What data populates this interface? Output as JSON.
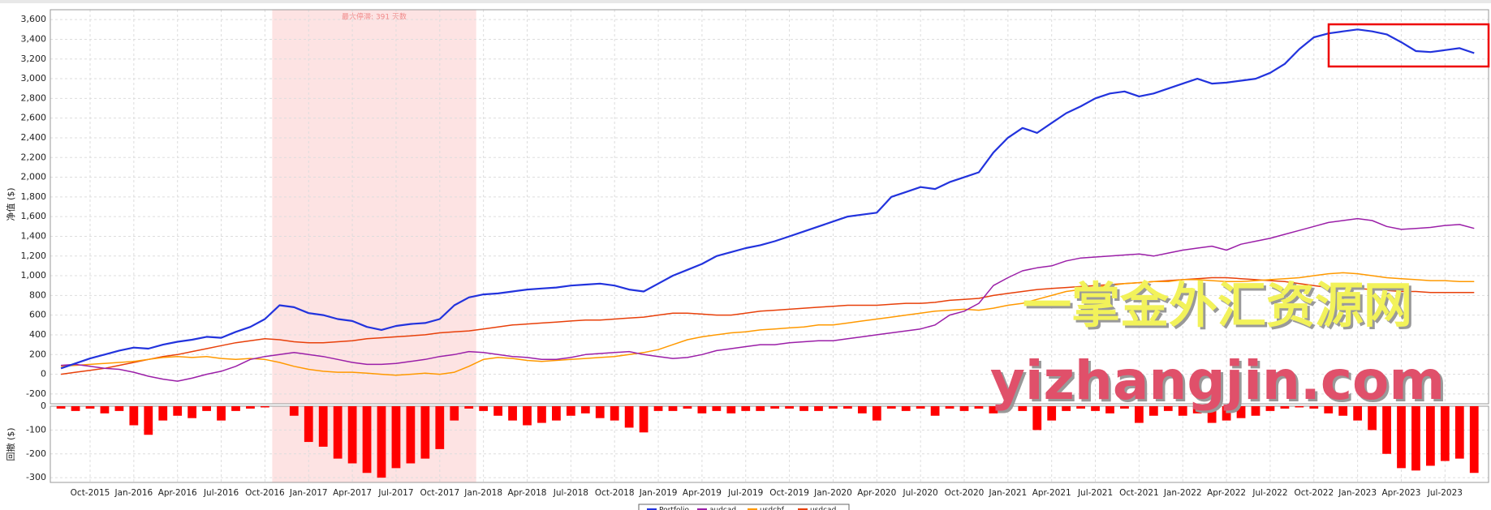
{
  "chart_data": {
    "type": "line",
    "ylabel": "净值 ($)",
    "x": [
      "Aug-2015",
      "Sep-2015",
      "Oct-2015",
      "Nov-2015",
      "Dec-2015",
      "Jan-2016",
      "Feb-2016",
      "Mar-2016",
      "Apr-2016",
      "May-2016",
      "Jun-2016",
      "Jul-2016",
      "Aug-2016",
      "Sep-2016",
      "Oct-2016",
      "Nov-2016",
      "Dec-2016",
      "Jan-2017",
      "Feb-2017",
      "Mar-2017",
      "Apr-2017",
      "May-2017",
      "Jun-2017",
      "Jul-2017",
      "Aug-2017",
      "Sep-2017",
      "Oct-2017",
      "Nov-2017",
      "Dec-2017",
      "Jan-2018",
      "Feb-2018",
      "Mar-2018",
      "Apr-2018",
      "May-2018",
      "Jun-2018",
      "Jul-2018",
      "Aug-2018",
      "Sep-2018",
      "Oct-2018",
      "Nov-2018",
      "Dec-2018",
      "Jan-2019",
      "Feb-2019",
      "Mar-2019",
      "Apr-2019",
      "May-2019",
      "Jun-2019",
      "Jul-2019",
      "Aug-2019",
      "Sep-2019",
      "Oct-2019",
      "Nov-2019",
      "Dec-2019",
      "Jan-2020",
      "Feb-2020",
      "Mar-2020",
      "Apr-2020",
      "May-2020",
      "Jun-2020",
      "Jul-2020",
      "Aug-2020",
      "Sep-2020",
      "Oct-2020",
      "Nov-2020",
      "Dec-2020",
      "Jan-2021",
      "Feb-2021",
      "Mar-2021",
      "Apr-2021",
      "May-2021",
      "Jun-2021",
      "Jul-2021",
      "Aug-2021",
      "Sep-2021",
      "Oct-2021",
      "Nov-2021",
      "Dec-2021",
      "Jan-2022",
      "Feb-2022",
      "Mar-2022",
      "Apr-2022",
      "May-2022",
      "Jun-2022",
      "Jul-2022",
      "Aug-2022",
      "Sep-2022",
      "Oct-2022",
      "Nov-2022",
      "Dec-2022",
      "Jan-2023",
      "Feb-2023",
      "Mar-2023",
      "Apr-2023",
      "May-2023",
      "Jun-2023",
      "Jul-2023",
      "Aug-2023",
      "Sep-2023"
    ],
    "series": [
      {
        "name": "Portfolio",
        "color": "#2233dd",
        "width": 2.2,
        "values": [
          60,
          110,
          160,
          200,
          240,
          270,
          260,
          300,
          330,
          350,
          380,
          370,
          430,
          480,
          560,
          700,
          680,
          620,
          600,
          560,
          540,
          480,
          450,
          490,
          510,
          520,
          560,
          700,
          780,
          810,
          820,
          840,
          860,
          870,
          880,
          900,
          910,
          920,
          900,
          860,
          840,
          920,
          1000,
          1060,
          1120,
          1200,
          1240,
          1280,
          1310,
          1350,
          1400,
          1450,
          1500,
          1550,
          1600,
          1620,
          1640,
          1800,
          1850,
          1900,
          1880,
          1950,
          2000,
          2050,
          2250,
          2400,
          2500,
          2450,
          2550,
          2650,
          2720,
          2800,
          2850,
          2870,
          2820,
          2850,
          2900,
          2950,
          3000,
          2950,
          2960,
          2980,
          3000,
          3060,
          3150,
          3300,
          3420,
          3460,
          3480,
          3500,
          3480,
          3450,
          3370,
          3280,
          3270,
          3290,
          3310,
          3260
        ]
      },
      {
        "name": "audcad",
        "color": "#9b1fa8",
        "width": 1.5,
        "values": [
          90,
          100,
          80,
          60,
          50,
          20,
          -20,
          -50,
          -70,
          -40,
          0,
          30,
          80,
          150,
          180,
          200,
          220,
          200,
          180,
          150,
          120,
          100,
          100,
          110,
          130,
          150,
          180,
          200,
          230,
          220,
          200,
          180,
          170,
          150,
          150,
          170,
          200,
          210,
          220,
          230,
          200,
          180,
          160,
          170,
          200,
          240,
          260,
          280,
          300,
          300,
          320,
          330,
          340,
          340,
          360,
          380,
          400,
          420,
          440,
          460,
          500,
          600,
          640,
          720,
          900,
          980,
          1050,
          1080,
          1100,
          1150,
          1180,
          1190,
          1200,
          1210,
          1220,
          1200,
          1230,
          1260,
          1280,
          1300,
          1260,
          1320,
          1350,
          1380,
          1420,
          1460,
          1500,
          1540,
          1560,
          1580,
          1560,
          1500,
          1470,
          1480,
          1490,
          1510,
          1520,
          1480
        ]
      },
      {
        "name": "usdchf",
        "color": "#ff9900",
        "width": 1.5,
        "values": [
          80,
          90,
          100,
          110,
          120,
          130,
          150,
          170,
          180,
          170,
          180,
          160,
          150,
          160,
          150,
          120,
          80,
          50,
          30,
          20,
          20,
          10,
          0,
          -10,
          0,
          10,
          0,
          20,
          80,
          150,
          170,
          160,
          140,
          130,
          140,
          150,
          160,
          170,
          180,
          200,
          220,
          250,
          300,
          350,
          380,
          400,
          420,
          430,
          450,
          460,
          470,
          480,
          500,
          500,
          520,
          540,
          560,
          580,
          600,
          620,
          640,
          650,
          660,
          650,
          670,
          700,
          720,
          760,
          800,
          840,
          860,
          880,
          900,
          920,
          930,
          940,
          940,
          960,
          960,
          950,
          940,
          940,
          950,
          960,
          970,
          980,
          1000,
          1020,
          1030,
          1020,
          1000,
          980,
          970,
          960,
          950,
          950,
          940,
          940
        ]
      },
      {
        "name": "usdcad",
        "color": "#e8400a",
        "width": 1.5,
        "values": [
          0,
          20,
          40,
          60,
          90,
          120,
          150,
          180,
          200,
          230,
          260,
          290,
          320,
          340,
          360,
          350,
          330,
          320,
          320,
          330,
          340,
          360,
          370,
          380,
          390,
          400,
          420,
          430,
          440,
          460,
          480,
          500,
          510,
          520,
          530,
          540,
          550,
          550,
          560,
          570,
          580,
          600,
          620,
          620,
          610,
          600,
          600,
          620,
          640,
          650,
          660,
          670,
          680,
          690,
          700,
          700,
          700,
          710,
          720,
          720,
          730,
          750,
          760,
          770,
          800,
          820,
          840,
          860,
          870,
          880,
          890,
          900,
          910,
          920,
          930,
          940,
          950,
          960,
          970,
          980,
          980,
          970,
          960,
          950,
          940,
          920,
          900,
          880,
          880,
          870,
          860,
          850,
          840,
          840,
          830,
          830,
          830,
          830
        ]
      }
    ],
    "ylim": [
      -300,
      3700
    ],
    "yticks": [
      -200,
      0,
      200,
      400,
      600,
      800,
      {
        "value": 1000,
        "label": "1,000"
      },
      {
        "value": 1200,
        "label": "1,200"
      },
      {
        "value": 1400,
        "label": "1,400"
      },
      {
        "value": 1600,
        "label": "1,600"
      },
      {
        "value": 1800,
        "label": "1,800"
      },
      {
        "value": 2000,
        "label": "2,000"
      },
      {
        "value": 2200,
        "label": "2,200"
      },
      {
        "value": 2400,
        "label": "2,400"
      },
      {
        "value": 2600,
        "label": "2,600"
      },
      {
        "value": 2800,
        "label": "2,800"
      },
      {
        "value": 3000,
        "label": "3,000"
      },
      {
        "value": 3200,
        "label": "3,200"
      },
      {
        "value": 3400,
        "label": "3,400"
      },
      {
        "value": 3600,
        "label": "3,600"
      }
    ],
    "grid": true,
    "shade": {
      "from": "Nov-2016",
      "to": "Dec-2017",
      "label": "最大停滞: 391 天数",
      "color": "#fde3e3"
    },
    "drawdown": {
      "ylabel": "回撤 ($)",
      "color": "#ff0000",
      "ylim": [
        -320,
        0
      ],
      "yticks": [
        0,
        -100,
        -200,
        -300
      ],
      "values": [
        -10,
        -20,
        -10,
        -30,
        -20,
        -80,
        -120,
        -60,
        -40,
        -50,
        -20,
        -60,
        -20,
        -10,
        -5,
        0,
        -40,
        -150,
        -170,
        -220,
        -240,
        -280,
        -300,
        -260,
        -240,
        -220,
        -180,
        -60,
        -10,
        -20,
        -40,
        -60,
        -80,
        -70,
        -60,
        -40,
        -30,
        -50,
        -60,
        -90,
        -110,
        -20,
        -20,
        -10,
        -30,
        -20,
        -30,
        -20,
        -20,
        -10,
        -10,
        -20,
        -20,
        -10,
        -10,
        -30,
        -60,
        -10,
        -20,
        -10,
        -40,
        -10,
        -20,
        -10,
        -30,
        -10,
        -20,
        -100,
        -60,
        -20,
        -10,
        -20,
        -30,
        -10,
        -70,
        -40,
        -20,
        -40,
        -30,
        -70,
        -60,
        -50,
        -40,
        -20,
        -10,
        -5,
        -10,
        -30,
        -40,
        -60,
        -100,
        -200,
        -260,
        -270,
        -250,
        -230,
        -220,
        -280
      ]
    },
    "watermarks": [
      "一掌金外汇资源网",
      "yizhangjin.com"
    ]
  }
}
